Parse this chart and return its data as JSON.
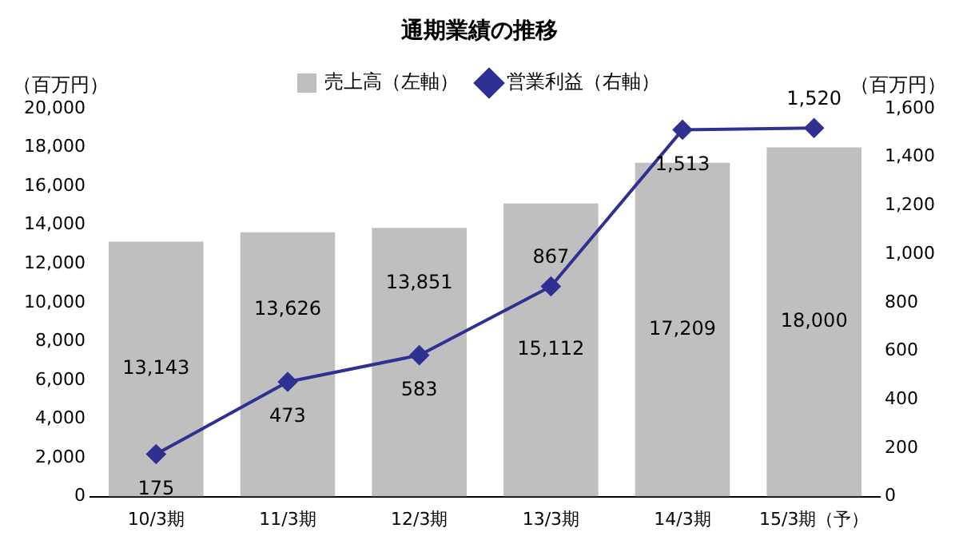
{
  "chart_data": {
    "type": "bar",
    "title": "通期業績の推移",
    "ylabel": "（百万円）",
    "y2label": "（百万円）",
    "categories": [
      "10/3期",
      "11/3期",
      "12/3期",
      "13/3期",
      "14/3期",
      "15/3期（予）"
    ],
    "series": [
      {
        "name": "売上高（左軸）",
        "color": "#bfbfbf",
        "values": [
          13143,
          13626,
          13851,
          15112,
          17209,
          18000
        ],
        "value_labels": [
          "13,143",
          "13,626",
          "13,851",
          "15,112",
          "17,209",
          "18,000"
        ]
      },
      {
        "name": "営業利益（右軸）",
        "type": "line",
        "axis": "y2",
        "color": "#2e3192",
        "marker": "diamond",
        "values": [
          175,
          473,
          583,
          867,
          1513,
          1520
        ],
        "value_labels": [
          "175",
          "473",
          "583",
          "867",
          "1,513",
          "1,520"
        ]
      }
    ],
    "ylim": [
      0,
      20000
    ],
    "yticks": [
      0,
      {
        "value": 2000,
        "label": "2,000"
      },
      {
        "value": 4000,
        "label": "4,000"
      },
      {
        "value": 6000,
        "label": "6,000"
      },
      {
        "value": 8000,
        "label": "8,000"
      },
      {
        "value": 10000,
        "label": "10,000"
      },
      {
        "value": 12000,
        "label": "12,000"
      },
      {
        "value": 14000,
        "label": "14,000"
      },
      {
        "value": 16000,
        "label": "16,000"
      },
      {
        "value": 18000,
        "label": "18,000"
      },
      {
        "value": 20000,
        "label": "20,000"
      }
    ],
    "y2lim": [
      0,
      1600
    ],
    "y2ticks": [
      0,
      200,
      400,
      600,
      800,
      {
        "value": 1000,
        "label": "1,000"
      },
      {
        "value": 1200,
        "label": "1,200"
      },
      {
        "value": 1400,
        "label": "1,400"
      },
      {
        "value": 1600,
        "label": "1,600"
      }
    ],
    "legend": "top",
    "grid": false
  }
}
